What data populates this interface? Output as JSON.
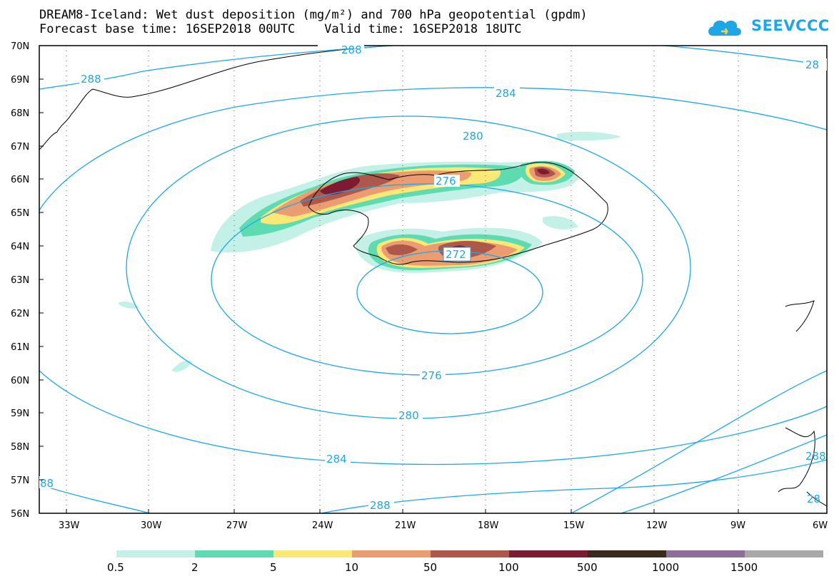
{
  "header": {
    "title_line1": "DREAM8-Iceland: Wet dust deposition (mg/m²) and 700 hPa geopotential (gpdm)",
    "title_line2": "Forecast base time: 16SEP2018 00UTC    Valid time: 16SEP2018 18UTC"
  },
  "logo": {
    "text": "SEEVCCC"
  },
  "map": {
    "lat_labels": [
      "70N",
      "69N",
      "68N",
      "67N",
      "66N",
      "65N",
      "64N",
      "63N",
      "62N",
      "61N",
      "60N",
      "59N",
      "58N",
      "57N",
      "56N"
    ],
    "lon_labels": [
      "33W",
      "30W",
      "27W",
      "24W",
      "21W",
      "18W",
      "15W",
      "12W",
      "9W",
      "6W"
    ],
    "contour_labels": [
      "288",
      "288",
      "284",
      "280",
      "276",
      "272",
      "276",
      "280",
      "284",
      "288",
      "288",
      "28",
      "88",
      "28"
    ],
    "contour_color": "#1ea7e6"
  },
  "legend": {
    "labels": [
      "0.5",
      "2",
      "5",
      "10",
      "50",
      "100",
      "500",
      "1000",
      "1500"
    ],
    "colors": [
      "#c3f0e7",
      "#5fdbb2",
      "#fae877",
      "#eb9d71",
      "#ad584b",
      "#7c1b31",
      "#3b2a1c",
      "#8d6e99",
      "#a8a8a8"
    ]
  }
}
